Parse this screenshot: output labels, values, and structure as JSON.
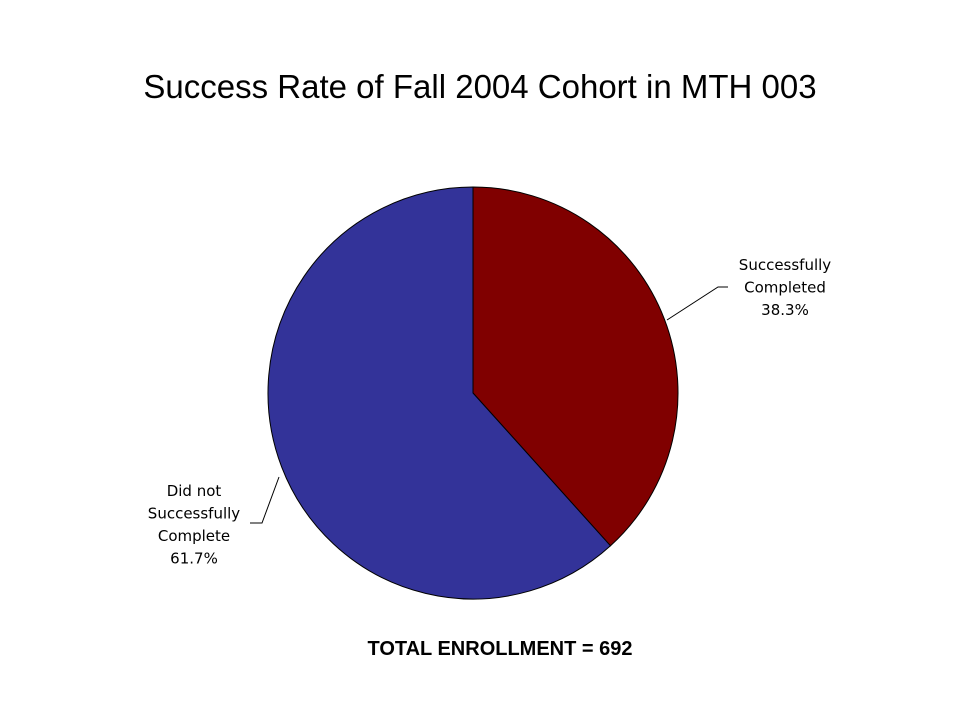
{
  "title": "Success Rate of Fall 2004 Cohort in MTH 003",
  "footer": "TOTAL ENROLLMENT = 692",
  "chart_data": {
    "type": "pie",
    "title": "Success Rate of Fall 2004 Cohort in MTH 003",
    "slices": [
      {
        "lines": [
          "Successfully",
          "Completed",
          "38.3%"
        ],
        "value": 38.3,
        "color": "#800000"
      },
      {
        "lines": [
          "Did not",
          "Successfully",
          "Complete",
          "61.7%"
        ],
        "value": 61.7,
        "color": "#333399"
      }
    ],
    "start": "top",
    "direction": "clockwise",
    "legend": "none",
    "labels": "outside with leader lines"
  }
}
